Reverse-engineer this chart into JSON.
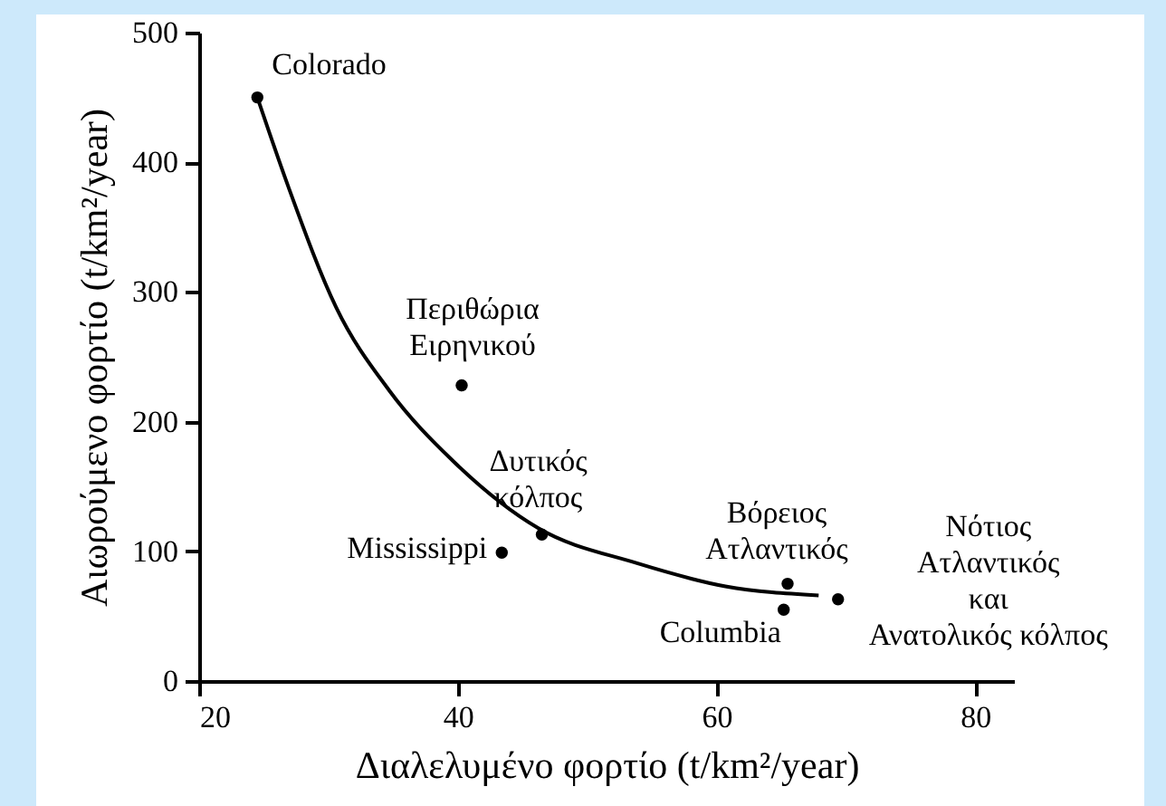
{
  "chart_data": {
    "type": "scatter",
    "xlabel": "Διαλελυμένο φορτίο (t/km²/year)",
    "ylabel": "Αιωρούμενο φορτίο (t/km²/year)",
    "xlim": [
      20,
      83
    ],
    "ylim": [
      0,
      500
    ],
    "xticks": [
      20,
      40,
      60,
      80
    ],
    "yticks": [
      0,
      100,
      200,
      300,
      400,
      500
    ],
    "grid": false,
    "series": [
      {
        "marker": "circle",
        "color": "#000000",
        "x": [
          24.5,
          40.3,
          43.4,
          46.5,
          65.5,
          65.2,
          69.4
        ],
        "values": [
          450,
          228,
          99,
          113,
          75,
          55,
          63
        ]
      },
      {
        "type": "line",
        "color": "#000000",
        "x": [
          24.5,
          26.9,
          30.6,
          34.7,
          39.7,
          46.2,
          53.8,
          60.7,
          67.9
        ],
        "values": [
          450,
          381,
          288,
          224,
          169,
          118,
          91,
          73,
          66
        ]
      }
    ],
    "annotations": [
      {
        "text": "Colorado",
        "x": 24.5,
        "y": 450
      },
      {
        "text": "Περιθώρια\nΕιρηνικού",
        "x": 40.3,
        "y": 228
      },
      {
        "text": "Mississippi",
        "x": 43.4,
        "y": 99
      },
      {
        "text": "Δυτικός\nκόλπος",
        "x": 46.5,
        "y": 113
      },
      {
        "text": "Βόρειος\nΑτλαντικός",
        "x": 65.5,
        "y": 75
      },
      {
        "text": "Columbia",
        "x": 65.2,
        "y": 55
      },
      {
        "text": "Νότιος\nΑτλαντικός\nκαι\nΑνατολικός κόλπος",
        "x": 69.4,
        "y": 63
      }
    ]
  }
}
